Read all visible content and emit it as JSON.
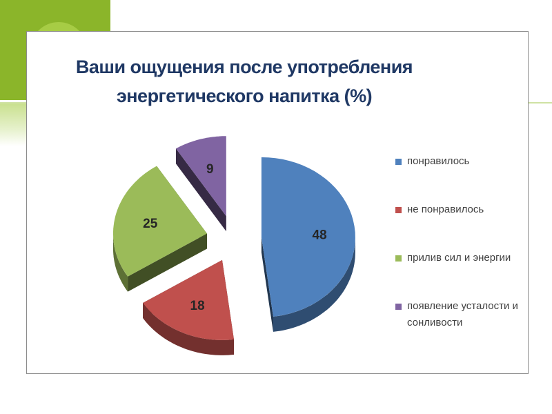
{
  "chart_data": {
    "type": "pie",
    "title": [
      "Ваши ощущения после употребления",
      "энергетического напитка (%)"
    ],
    "categories": [
      "понравилось",
      "не понравилось",
      "прилив сил и энергии",
      "появление усталости и сонливости"
    ],
    "values": [
      48,
      18,
      25,
      9
    ],
    "colors": [
      "#4f81bd",
      "#c0504d",
      "#9bbb59",
      "#8064a2"
    ],
    "exploded": true,
    "three_d": true,
    "legend_position": "right"
  }
}
